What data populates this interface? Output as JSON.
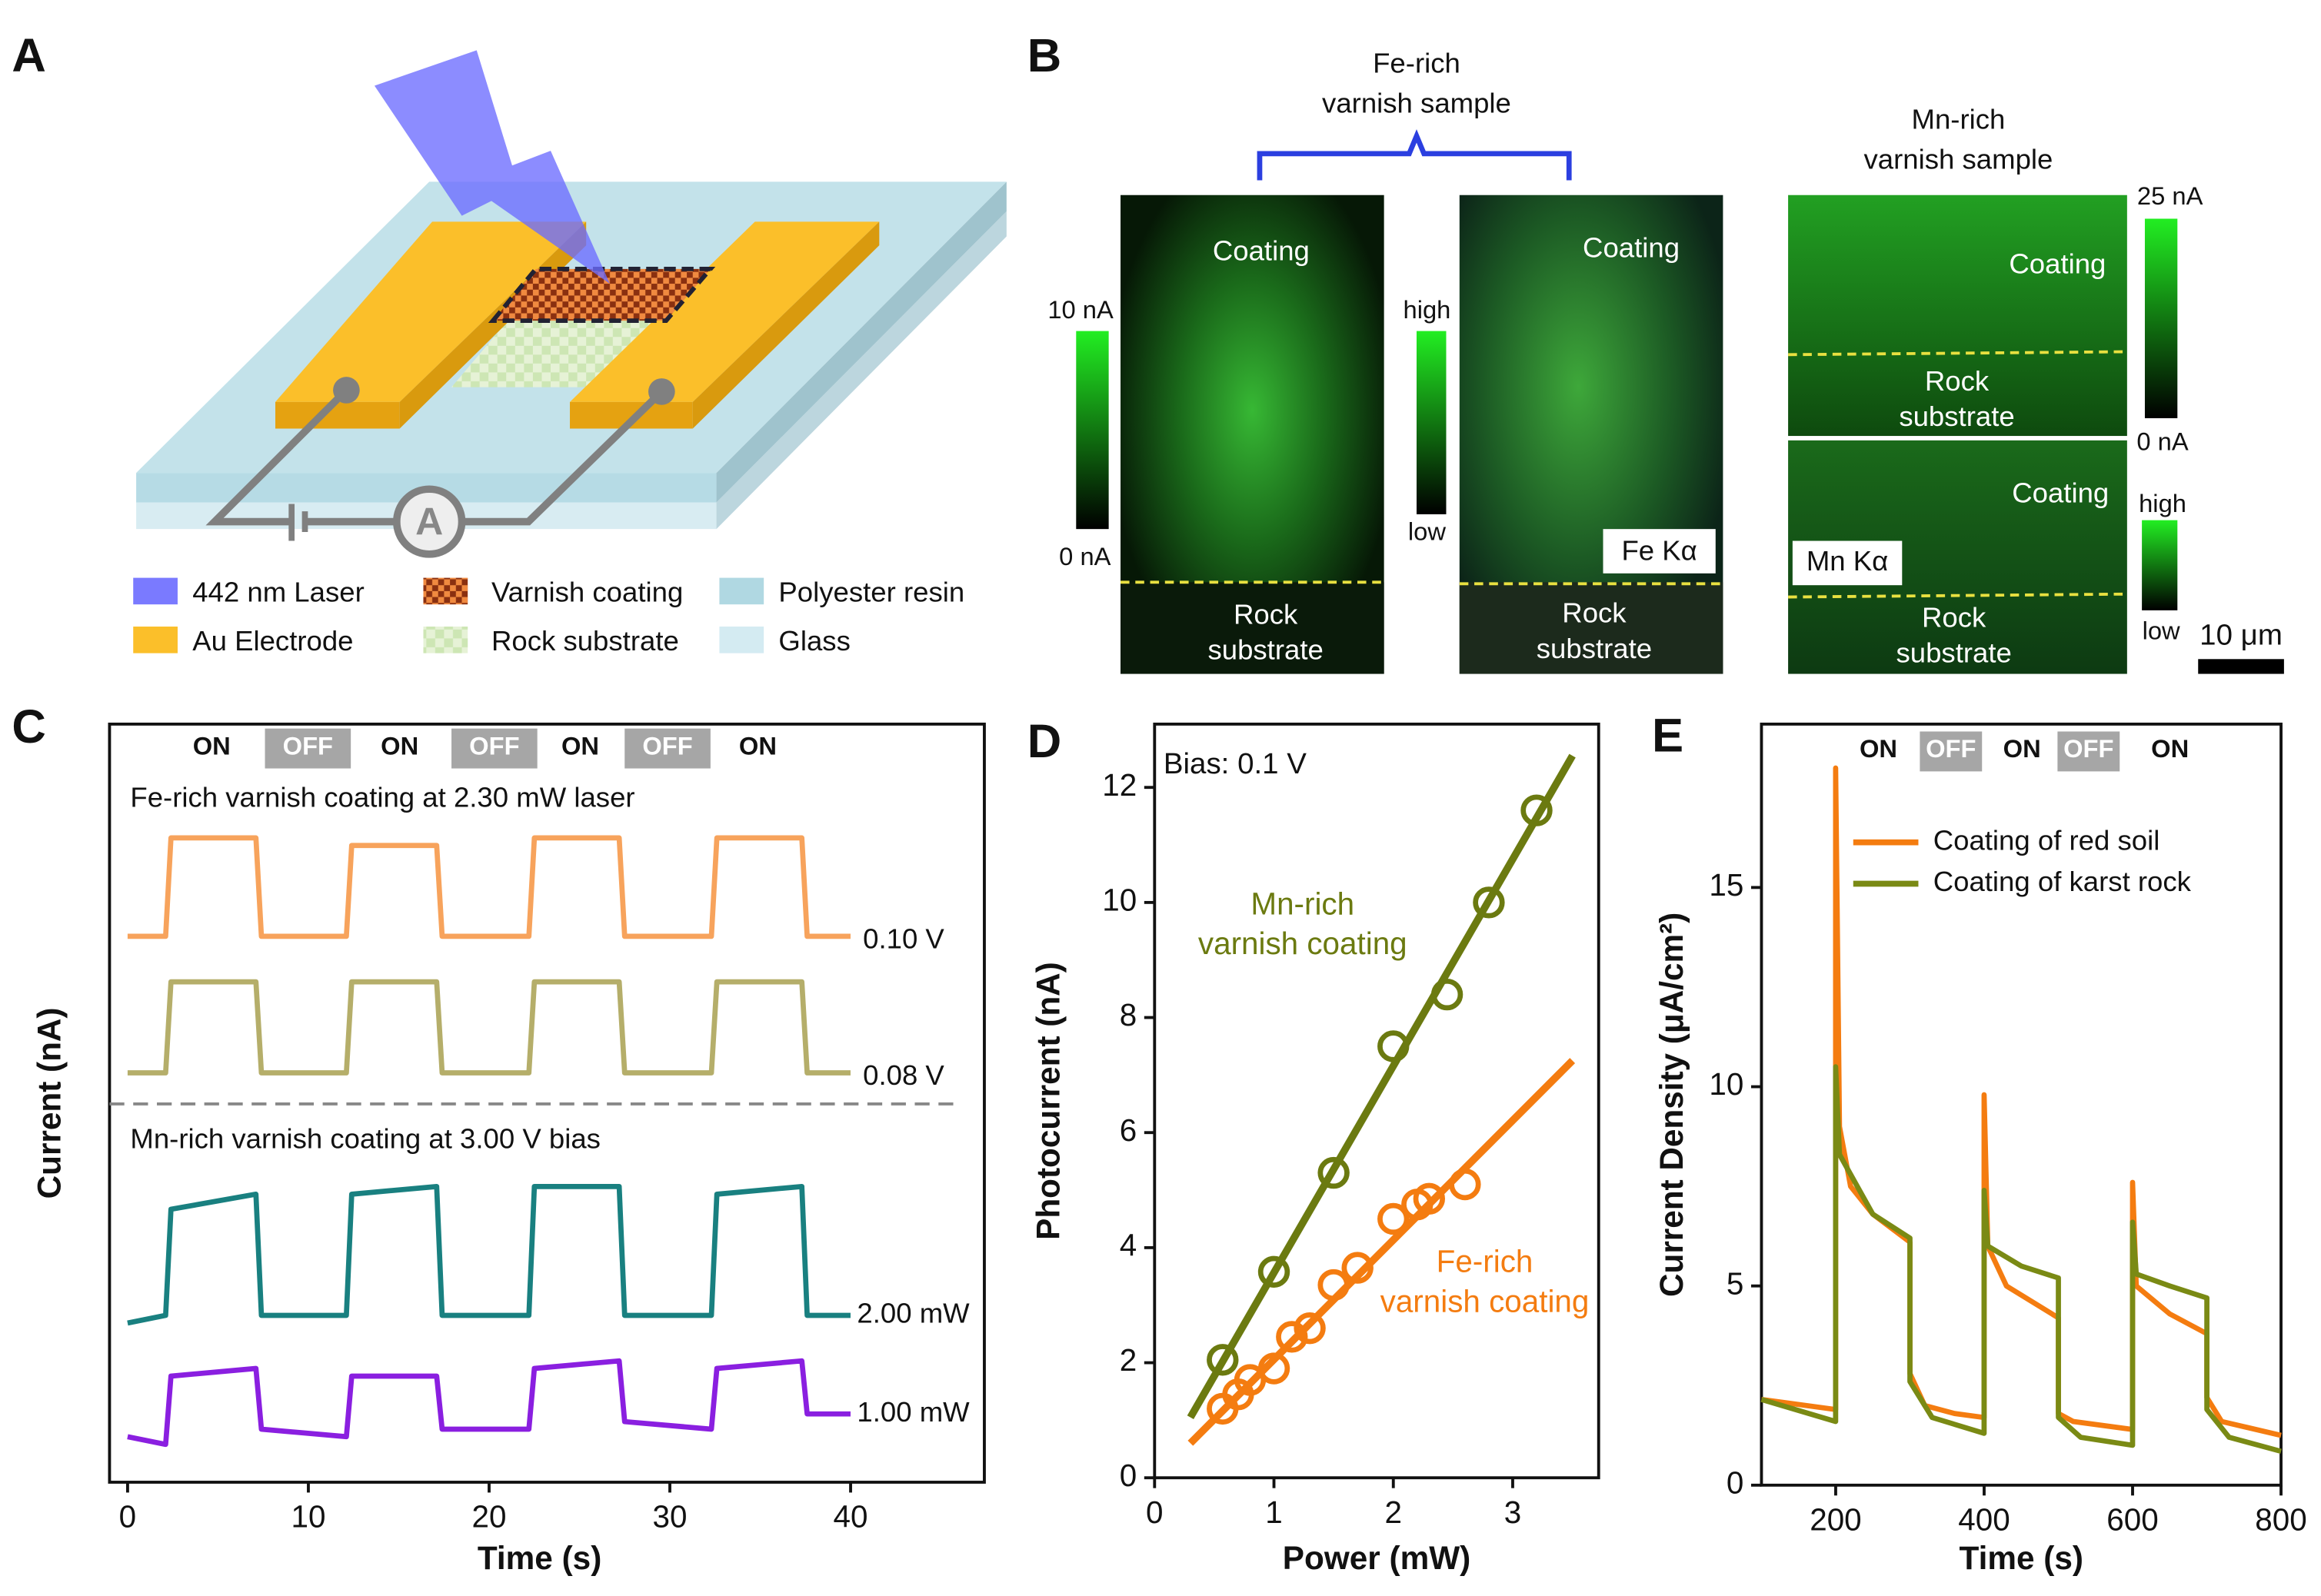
{
  "panel_labels": [
    "A",
    "B",
    "C",
    "D",
    "E"
  ],
  "diagram": {
    "ammeter": "A",
    "legend": [
      "442 nm Laser",
      "Varnish coating",
      "Polyester resin",
      "Au Electrode",
      "Rock substrate",
      "Glass"
    ]
  },
  "maps": {
    "fe_title": [
      "Fe-rich",
      "varnish sample"
    ],
    "mn_title": [
      "Mn-rich",
      "varnish sample"
    ],
    "coating": "Coating",
    "rock": [
      "Rock",
      "substrate"
    ],
    "fe_bar": [
      "10 nA",
      "0 nA"
    ],
    "mn_bar": [
      "25 nA",
      "0 nA"
    ],
    "map_bar": [
      "high",
      "low"
    ],
    "fe_map": "Fe Kα",
    "mn_map": "Mn Kα",
    "scale": "10 μm"
  },
  "chart_data": [
    {
      "type": "line",
      "x_label": "Time (s)",
      "y_label": "Current (nA)",
      "state_labels": [
        "ON",
        "OFF",
        "ON",
        "OFF",
        "ON",
        "OFF",
        "ON"
      ],
      "annotations": [
        "Fe-rich varnish coating at 2.30 mW laser",
        "Mn-rich varnish coating at 3.00 V bias"
      ],
      "xlim": [
        -1,
        47.4
      ],
      "ylim": [
        0,
        10
      ],
      "xticks": [
        0,
        10,
        20,
        30,
        40
      ],
      "x": [
        0,
        2.1,
        2.4,
        7.1,
        7.4,
        12.1,
        12.4,
        17.1,
        17.4,
        22.2,
        22.5,
        27.2,
        27.5,
        32.3,
        32.6,
        37.3,
        37.6,
        40
      ],
      "series": [
        {
          "name": "0.10 V",
          "color": "#f7a35c",
          "values": [
            7.2,
            7.2,
            8.5,
            8.5,
            7.2,
            7.2,
            8.4,
            8.4,
            7.2,
            7.2,
            8.5,
            8.5,
            7.2,
            7.2,
            8.5,
            8.5,
            7.2,
            7.2
          ]
        },
        {
          "name": "0.08 V",
          "color": "#b5ae6a",
          "values": [
            5.4,
            5.4,
            6.6,
            6.6,
            5.4,
            5.4,
            6.6,
            6.6,
            5.4,
            5.4,
            6.6,
            6.6,
            5.4,
            5.4,
            6.6,
            6.6,
            5.4,
            5.4
          ]
        },
        {
          "name": "2.00 mW",
          "color": "#198080",
          "values": [
            2.1,
            2.2,
            3.6,
            3.8,
            2.2,
            2.2,
            3.8,
            3.9,
            2.2,
            2.2,
            3.9,
            3.9,
            2.2,
            2.2,
            3.8,
            3.9,
            2.2,
            2.2
          ]
        },
        {
          "name": "1.00 mW",
          "color": "#8a1fe0",
          "values": [
            0.6,
            0.5,
            1.4,
            1.5,
            0.7,
            0.6,
            1.4,
            1.4,
            0.7,
            0.7,
            1.5,
            1.6,
            0.8,
            0.7,
            1.5,
            1.6,
            0.9,
            0.9
          ]
        }
      ]
    },
    {
      "type": "scatter",
      "x_label": "Power (mW)",
      "y_label": "Photocurrent  (nA)",
      "annotation": "Bias: 0.1 V",
      "xlim": [
        0,
        3.72
      ],
      "ylim": [
        0,
        13.1
      ],
      "xticks": [
        0,
        1,
        2,
        3
      ],
      "yticks": [
        0,
        2,
        4,
        6,
        8,
        10,
        12
      ],
      "series": [
        {
          "label_lines": [
            "Mn-rich",
            "varnish coating"
          ],
          "color": "#6b7a10",
          "x": [
            0.57,
            1.0,
            1.5,
            2.0,
            2.45,
            2.8,
            3.2
          ],
          "values": [
            2.05,
            3.58,
            5.3,
            7.5,
            8.4,
            10.0,
            11.6
          ],
          "fit_x": [
            0.3,
            3.5
          ],
          "fit_values": [
            1.05,
            12.55
          ]
        },
        {
          "label_lines": [
            "Fe-rich",
            "varnish coating"
          ],
          "color": "#f47c10",
          "x": [
            0.57,
            0.7,
            0.8,
            1.0,
            1.15,
            1.3,
            1.5,
            1.7,
            2.0,
            2.2,
            2.3,
            2.6
          ],
          "values": [
            1.2,
            1.45,
            1.7,
            1.9,
            2.45,
            2.6,
            3.35,
            3.65,
            4.5,
            4.75,
            4.85,
            5.1
          ],
          "fit_x": [
            0.3,
            3.5
          ],
          "fit_values": [
            0.6,
            7.25
          ]
        }
      ]
    },
    {
      "type": "line",
      "x_label": "Time (s)",
      "y_label": "Current Density (μA/cm²)",
      "state_labels": [
        "ON",
        "OFF",
        "ON",
        "OFF",
        "ON"
      ],
      "xlim": [
        100,
        800
      ],
      "ylim": [
        0,
        19.1
      ],
      "xticks": [
        200,
        400,
        600,
        800
      ],
      "yticks": [
        0,
        5,
        10,
        15
      ],
      "series": [
        {
          "name": "Coating of red soil",
          "color": "#f47c10",
          "x": [
            100,
            200,
            200,
            205,
            220,
            250,
            300,
            300,
            320,
            360,
            400,
            400,
            405,
            430,
            500,
            500,
            520,
            600,
            600,
            605,
            650,
            700,
            700,
            720,
            800
          ],
          "values": [
            2.15,
            1.9,
            18,
            9,
            7.5,
            6.8,
            6.1,
            2.8,
            2.0,
            1.8,
            1.7,
            9.8,
            6,
            5.0,
            4.2,
            1.8,
            1.6,
            1.4,
            7.6,
            5,
            4.3,
            3.8,
            2.2,
            1.6,
            1.25
          ]
        },
        {
          "name": "Coating of karst rock",
          "color": "#7a8a14",
          "x": [
            100,
            200,
            200,
            205,
            250,
            300,
            300,
            330,
            400,
            400,
            405,
            450,
            500,
            500,
            530,
            600,
            600,
            605,
            650,
            700,
            700,
            730,
            800
          ],
          "values": [
            2.15,
            1.6,
            10.5,
            8.3,
            6.8,
            6.2,
            2.6,
            1.7,
            1.3,
            7.4,
            6.0,
            5.5,
            5.2,
            1.7,
            1.2,
            1.0,
            6.6,
            5.3,
            5.0,
            4.7,
            1.9,
            1.2,
            0.85
          ]
        }
      ]
    }
  ]
}
